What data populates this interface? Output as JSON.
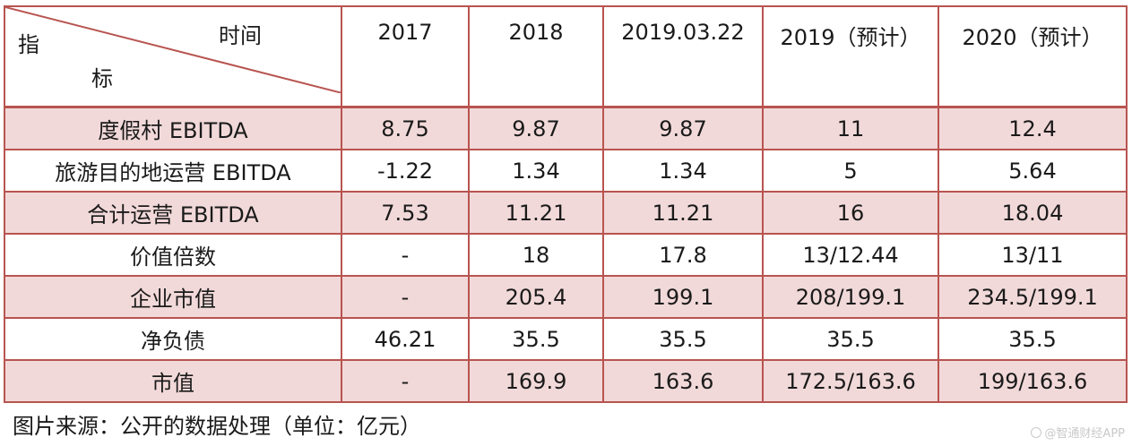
{
  "table": {
    "corner": {
      "time_label": "时间",
      "indicator_top": "指",
      "indicator_bottom": "标"
    },
    "columns": [
      "2017",
      "2018",
      "2019.03.22",
      "2019（预计）",
      "2020（预计）"
    ],
    "rows": [
      {
        "label": "度假村 EBITDA",
        "values": [
          "8.75",
          "9.87",
          "9.87",
          "11",
          "12.4"
        ]
      },
      {
        "label": "旅游目的地运营 EBITDA",
        "values": [
          "-1.22",
          "1.34",
          "1.34",
          "5",
          "5.64"
        ]
      },
      {
        "label": "合计运营 EBITDA",
        "values": [
          "7.53",
          "11.21",
          "11.21",
          "16",
          "18.04"
        ]
      },
      {
        "label": "价值倍数",
        "values": [
          "-",
          "18",
          "17.8",
          "13/12.44",
          "13/11"
        ]
      },
      {
        "label": "企业市值",
        "values": [
          "-",
          "205.4",
          "199.1",
          "208/199.1",
          "234.5/199.1"
        ]
      },
      {
        "label": "净负债",
        "values": [
          "46.21",
          "35.5",
          "35.5",
          "35.5",
          "35.5"
        ]
      },
      {
        "label": "市值",
        "values": [
          "-",
          "169.9",
          "163.6",
          "172.5/163.6",
          "199/163.6"
        ]
      }
    ]
  },
  "source_note": "图片来源：公开的数据处理（单位：亿元）",
  "watermark": "@智通财经APP",
  "colors": {
    "border": "#b85450",
    "shaded_row": "#f2d9d9"
  }
}
